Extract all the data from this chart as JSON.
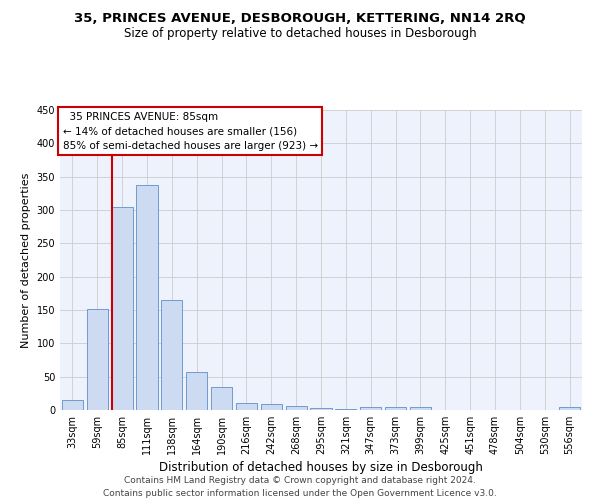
{
  "title": "35, PRINCES AVENUE, DESBOROUGH, KETTERING, NN14 2RQ",
  "subtitle": "Size of property relative to detached houses in Desborough",
  "xlabel": "Distribution of detached houses by size in Desborough",
  "ylabel": "Number of detached properties",
  "categories": [
    "33sqm",
    "59sqm",
    "85sqm",
    "111sqm",
    "138sqm",
    "164sqm",
    "190sqm",
    "216sqm",
    "242sqm",
    "268sqm",
    "295sqm",
    "321sqm",
    "347sqm",
    "373sqm",
    "399sqm",
    "425sqm",
    "451sqm",
    "478sqm",
    "504sqm",
    "530sqm",
    "556sqm"
  ],
  "values": [
    15,
    152,
    305,
    338,
    165,
    57,
    34,
    10,
    9,
    6,
    3,
    2,
    5,
    5,
    5,
    0,
    0,
    0,
    0,
    0,
    5
  ],
  "bar_color": "#ccdaf2",
  "bar_edge_color": "#6090c8",
  "red_line_index": 2,
  "annotation_text": "  35 PRINCES AVENUE: 85sqm  \n← 14% of detached houses are smaller (156)\n85% of semi-detached houses are larger (923) →",
  "annotation_box_color": "#ffffff",
  "annotation_box_edge_color": "#cc0000",
  "ylim": [
    0,
    450
  ],
  "yticks": [
    0,
    50,
    100,
    150,
    200,
    250,
    300,
    350,
    400,
    450
  ],
  "grid_color": "#cccccc",
  "bg_color": "#eef2fc",
  "footer_line1": "Contains HM Land Registry data © Crown copyright and database right 2024.",
  "footer_line2": "Contains public sector information licensed under the Open Government Licence v3.0.",
  "title_fontsize": 9.5,
  "subtitle_fontsize": 8.5,
  "annotation_fontsize": 7.5,
  "ylabel_fontsize": 8,
  "xlabel_fontsize": 8.5,
  "footer_fontsize": 6.5,
  "tick_fontsize": 7
}
